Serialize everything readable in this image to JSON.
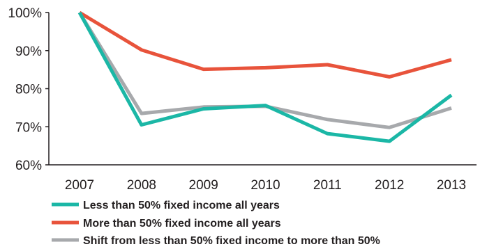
{
  "chart_data": {
    "type": "line",
    "title": "",
    "xlabel": "",
    "ylabel": "",
    "categories": [
      "2007",
      "2008",
      "2009",
      "2010",
      "2011",
      "2012",
      "2013"
    ],
    "y_ticks": [
      "60%",
      "70%",
      "80%",
      "90%",
      "100%"
    ],
    "ylim": [
      60,
      100
    ],
    "grid": false,
    "legend_position": "bottom",
    "series": [
      {
        "name": "Less than 50% fixed income all years",
        "color": "#1bb7a6",
        "values": [
          100,
          70.5,
          74.7,
          75.6,
          68.2,
          66.2,
          78.3
        ]
      },
      {
        "name": "More than 50% fixed income all years",
        "color": "#e8533b",
        "values": [
          100,
          90.2,
          85.1,
          85.5,
          86.3,
          83.1,
          87.6
        ]
      },
      {
        "name": "Shift from less than 50% fixed income to more than 50%",
        "color": "#a7a9ac",
        "values": [
          100,
          73.5,
          75.2,
          75.4,
          71.9,
          69.8,
          74.9
        ]
      }
    ]
  }
}
